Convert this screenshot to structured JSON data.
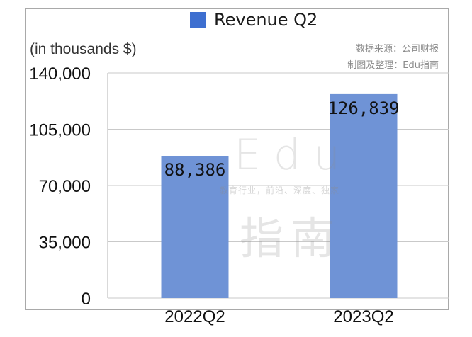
{
  "legend": {
    "label": "Revenue Q2",
    "color": "#3e6fd0"
  },
  "unit_label": "(in thousands $)",
  "source": {
    "line1": "数据来源：公司财报",
    "line2": "制图及整理：Edu指南"
  },
  "watermark": {
    "main": "Edu",
    "sub": "教育行业，前沿、深度、独家",
    "cn": "指南"
  },
  "colors": {
    "bar": "#6f93d6",
    "grid": "#c9c9c9",
    "axis": "#b3b3b3"
  },
  "chart_data": {
    "type": "bar",
    "categories": [
      "2022Q2",
      "2023Q2"
    ],
    "series": [
      {
        "name": "Revenue Q2",
        "values": [
          88386,
          126839
        ]
      }
    ],
    "data_labels": [
      "88,386",
      "126,839"
    ],
    "ylim": [
      0,
      140000
    ],
    "yticks": [
      0,
      35000,
      70000,
      105000,
      140000
    ],
    "ytick_labels": [
      "0",
      "35,000",
      "70,000",
      "105,000",
      "140,000"
    ],
    "grid": true,
    "legend_position": "top-center"
  }
}
